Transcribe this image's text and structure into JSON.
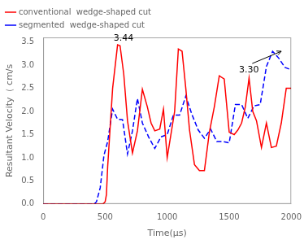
{
  "chart_data": {
    "type": "line",
    "xlabel": "Time(μs)",
    "ylabel": "Resultant Velocity（ cm/s",
    "xlim": [
      0,
      2000
    ],
    "ylim": [
      0,
      3.6
    ],
    "xticks": [
      0,
      500,
      1000,
      1500,
      2000
    ],
    "yticks": [
      {
        "value": 0,
        "label": "0.0"
      },
      0.5,
      {
        "value": 1,
        "label": "1.0"
      },
      1.5,
      {
        "value": 2,
        "label": "2.0"
      },
      2.5,
      {
        "value": 3,
        "label": "3.0"
      },
      3.5
    ],
    "grid": false,
    "legend": "upper left",
    "series": [
      {
        "name": "conventional  wedge-shaped cut",
        "color": "red",
        "line_style": "solid",
        "x": [
          0,
          480,
          490,
          500,
          510,
          520,
          560,
          600,
          620,
          650,
          680,
          720,
          760,
          800,
          840,
          870,
          900,
          940,
          970,
          1000,
          1030,
          1060,
          1090,
          1120,
          1150,
          1180,
          1220,
          1260,
          1300,
          1340,
          1380,
          1420,
          1460,
          1500,
          1540,
          1570,
          1600,
          1630,
          1660,
          1690,
          1720,
          1760,
          1800,
          1840,
          1880,
          1920,
          1960,
          2000
        ],
        "values": [
          0,
          0,
          0.02,
          0.05,
          0.2,
          0.8,
          2.5,
          3.44,
          3.42,
          2.8,
          1.8,
          1.1,
          1.58,
          2.48,
          2.1,
          1.75,
          1.58,
          1.62,
          2.05,
          1.0,
          1.5,
          2.0,
          3.35,
          3.3,
          2.5,
          1.6,
          0.85,
          0.72,
          0.72,
          1.55,
          2.1,
          2.77,
          2.7,
          1.55,
          1.5,
          1.6,
          1.75,
          2.1,
          2.72,
          2.0,
          1.8,
          1.22,
          1.75,
          1.22,
          1.25,
          1.75,
          2.5,
          2.5
        ]
      },
      {
        "name": "segmented  wedge-shaped cut",
        "color": "blue",
        "line_style": "dashed",
        "x": [
          0,
          400,
          420,
          430,
          440,
          460,
          490,
          520,
          560,
          600,
          640,
          680,
          720,
          760,
          800,
          850,
          900,
          950,
          1000,
          1050,
          1100,
          1150,
          1200,
          1250,
          1300,
          1350,
          1400,
          1450,
          1500,
          1550,
          1600,
          1650,
          1700,
          1750,
          1800,
          1850,
          1900,
          1950,
          2000
        ],
        "values": [
          0,
          0,
          0.02,
          0.05,
          0.15,
          0.35,
          1.05,
          1.35,
          2.05,
          1.83,
          1.82,
          1.08,
          1.58,
          2.28,
          1.75,
          1.45,
          1.2,
          1.45,
          1.5,
          1.92,
          1.92,
          2.33,
          1.93,
          1.6,
          1.42,
          1.62,
          1.35,
          1.35,
          1.32,
          2.15,
          2.15,
          1.85,
          2.12,
          2.15,
          2.97,
          3.3,
          3.15,
          2.95,
          2.9
        ]
      }
    ],
    "annotations": [
      {
        "text": "3.44",
        "x": 620,
        "y": 3.44
      },
      {
        "text": "3.30",
        "x": 1920,
        "y": 3.3,
        "arrow": true
      }
    ]
  }
}
